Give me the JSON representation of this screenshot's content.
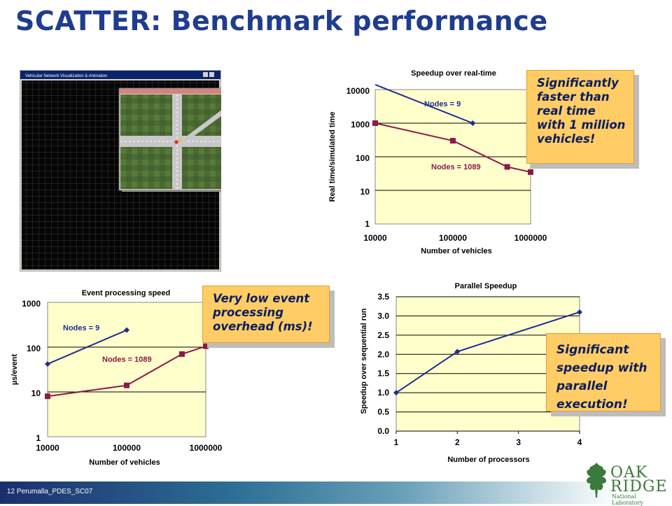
{
  "slide": {
    "title": "SCATTER: Benchmark performance",
    "footer": "12  Perumalla_PDES_SC07",
    "logo": {
      "line1": "OAK",
      "line2": "RIDGE",
      "line3": "National Laboratory"
    },
    "callouts": [
      "Significantly faster than real time with 1 million vehicles!",
      "Very low event processing overhead (ms)!",
      "Significant speedup with parallel execution!"
    ],
    "screenshot": {
      "window_title": "Vehicular Network Visualization & Animation",
      "inset_title": "Vehicular Network Visualization & Animation"
    }
  },
  "colors": {
    "title": "#1f3d8f",
    "plot_bg": "#ffffcc",
    "series_nodes9": "#1f2d8f",
    "series_nodes1089": "#8b1a4a",
    "callout_bg": "#ffcc66",
    "callout_text": "#0b1d5e",
    "grass": "#4a6a32",
    "road": "#c8c8c8"
  },
  "icons": [
    "oak-leaf-icon"
  ],
  "chart_data": [
    {
      "id": "realtime",
      "type": "line",
      "title": "Speedup over real-time",
      "xlabel": "Number of vehicles",
      "ylabel": "Real time/simulated time",
      "xscale": "log",
      "yscale": "log",
      "xlim": [
        10000,
        1000000
      ],
      "ylim": [
        1,
        10000
      ],
      "xticks": [
        "10000",
        "100000",
        "1000000"
      ],
      "yticks": [
        "1",
        "10",
        "100",
        "1000",
        "10000"
      ],
      "series": [
        {
          "name": "Nodes = 9",
          "marker": "diamond",
          "x": [
            10000,
            180000
          ],
          "y": [
            14000,
            1000
          ]
        },
        {
          "name": "Nodes = 1089",
          "marker": "square",
          "x": [
            10000,
            100000,
            500000,
            1000000
          ],
          "y": [
            1000,
            300,
            50,
            35
          ]
        }
      ]
    },
    {
      "id": "event",
      "type": "line",
      "title": "Event processing speed",
      "xlabel": "Number of vehicles",
      "ylabel": "µs/event",
      "xscale": "log",
      "yscale": "log",
      "xlim": [
        10000,
        1000000
      ],
      "ylim": [
        1,
        1000
      ],
      "xticks": [
        "10000",
        "100000",
        "1000000"
      ],
      "yticks": [
        "1",
        "10",
        "100",
        "1000"
      ],
      "series": [
        {
          "name": "Nodes = 9",
          "marker": "diamond",
          "x": [
            10000,
            100000
          ],
          "y": [
            42,
            240
          ]
        },
        {
          "name": "Nodes = 1089",
          "marker": "square",
          "x": [
            10000,
            100000,
            500000,
            1000000
          ],
          "y": [
            8,
            14,
            70,
            105
          ]
        }
      ]
    },
    {
      "id": "parallel",
      "type": "line",
      "title": "Parallel Speedup",
      "xlabel": "Number of processors",
      "ylabel": "Speedup over sequential run",
      "xlim": [
        1,
        4
      ],
      "ylim": [
        0,
        3.5
      ],
      "xticks": [
        "1",
        "2",
        "3",
        "4"
      ],
      "yticks": [
        "0.0",
        "0.5",
        "1.0",
        "1.5",
        "2.0",
        "2.5",
        "3.0",
        "3.5"
      ],
      "series": [
        {
          "marker": "diamond",
          "x": [
            1,
            2,
            4
          ],
          "y": [
            1.0,
            2.07,
            3.1
          ]
        }
      ]
    }
  ]
}
